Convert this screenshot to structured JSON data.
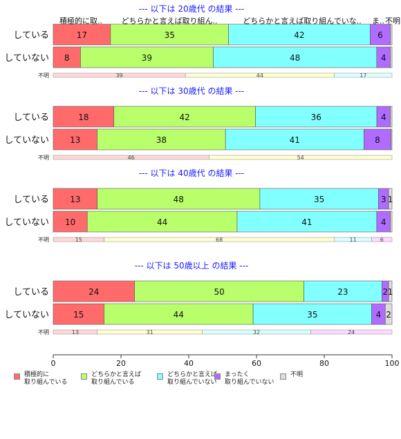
{
  "chart_data": {
    "type": "bar",
    "orientation": "horizontal",
    "stacked": true,
    "xlim": [
      0,
      100
    ],
    "xticks": [
      "0",
      "20",
      "40",
      "60",
      "80",
      "100"
    ],
    "categories": [
      "積極的に取り組んでいる",
      "どちらかと言えば取り組んでいる",
      "どちらかと言えば取り組んでいない",
      "まったく取り組んでいない",
      "不明"
    ],
    "header_labels": [
      "積極的に取..",
      "どちらかと言えば取り組ん..",
      "どちらかと言えば取り組んでいな..",
      "ま..",
      "不明"
    ],
    "colors": [
      "#ff6b6b",
      "#b8ff6b",
      "#82ffff",
      "#b06bff",
      "#dddddd"
    ],
    "legend": [
      {
        "label": "積極的に\n取り組んでいる",
        "color": "#ff6b6b"
      },
      {
        "label": "どちらかと言えば\n取り組んでいる",
        "color": "#b8ff6b"
      },
      {
        "label": "どちらかと言えば\n取り組んでいない",
        "color": "#82ffff"
      },
      {
        "label": "まったく\n取り組んでいない",
        "color": "#b06bff"
      },
      {
        "label": "不明",
        "color": "#dddddd"
      }
    ],
    "panels": [
      {
        "title": "--- 以下は 20歳代 の結果 ---",
        "rows": [
          {
            "label": "している",
            "values": [
              17,
              35,
              42,
              6,
              0.5
            ],
            "labels": [
              "17",
              "35",
              "42",
              "6",
              ""
            ]
          },
          {
            "label": "していない",
            "values": [
              8,
              39,
              48,
              4,
              0.5
            ],
            "labels": [
              "8",
              "39",
              "48",
              "4",
              ""
            ]
          }
        ],
        "share_label": "不明",
        "share": [
          39,
          44,
          17
        ],
        "share_labels": [
          "39",
          "44",
          "17"
        ]
      },
      {
        "title": "--- 以下は 30歳代 の結果 ---",
        "rows": [
          {
            "label": "している",
            "values": [
              18,
              42,
              36,
              4,
              0.5
            ],
            "labels": [
              "18",
              "42",
              "36",
              "4",
              ""
            ]
          },
          {
            "label": "していない",
            "values": [
              13,
              38,
              41,
              8,
              0.3
            ],
            "labels": [
              "13",
              "38",
              "41",
              "8",
              ""
            ]
          }
        ],
        "share_label": "不明",
        "share": [
          46,
          54
        ],
        "share_labels": [
          "46",
          "54"
        ]
      },
      {
        "title": "--- 以下は 40歳代 の結果 ---",
        "rows": [
          {
            "label": "している",
            "values": [
              13,
              48,
              35,
              3,
              1
            ],
            "labels": [
              "13",
              "48",
              "35",
              "3",
              "1"
            ]
          },
          {
            "label": "していない",
            "values": [
              10,
              44,
              41,
              4,
              0.5
            ],
            "labels": [
              "10",
              "44",
              "41",
              "4",
              ""
            ]
          }
        ],
        "share_label": "不明",
        "share": [
          15,
          68,
          11,
          6
        ],
        "share_labels": [
          "15",
          "68",
          "11",
          "6"
        ]
      },
      {
        "title": "--- 以下は 50歳以上 の結果 ---",
        "rows": [
          {
            "label": "している",
            "values": [
              24,
              50,
              23,
              2,
              1
            ],
            "labels": [
              "24",
              "50",
              "23",
              "2",
              "1"
            ]
          },
          {
            "label": "していない",
            "values": [
              15,
              44,
              35,
              4,
              2
            ],
            "labels": [
              "15",
              "44",
              "35",
              "4",
              "2"
            ]
          }
        ],
        "share_label": "不明",
        "share": [
          13,
          31,
          32,
          24
        ],
        "share_labels": [
          "13",
          "31",
          "32",
          "24"
        ]
      }
    ]
  }
}
